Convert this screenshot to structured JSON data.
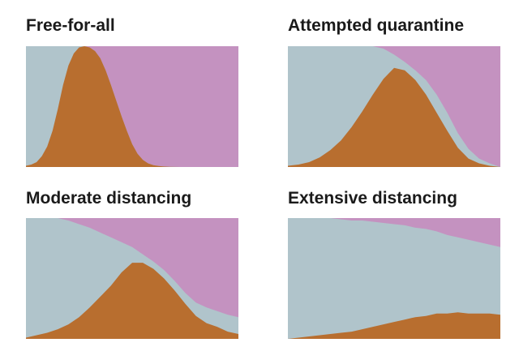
{
  "colors": {
    "healthy": "#b0c4cb",
    "sick": "#b86e2f",
    "recovered": "#c492c0"
  },
  "chart_data": [
    {
      "type": "area",
      "title": "Free-for-all",
      "x": [
        0,
        0.025,
        0.05,
        0.075,
        0.1,
        0.125,
        0.15,
        0.175,
        0.2,
        0.225,
        0.25,
        0.275,
        0.3,
        0.325,
        0.35,
        0.375,
        0.4,
        0.425,
        0.45,
        0.475,
        0.5,
        0.525,
        0.55,
        0.575,
        0.6,
        0.625,
        0.65,
        0.675,
        0.7,
        0.725,
        0.75,
        1
      ],
      "series": [
        {
          "key": "sick",
          "values": [
            0.01,
            0.02,
            0.04,
            0.09,
            0.17,
            0.3,
            0.48,
            0.68,
            0.84,
            0.94,
            0.99,
            1.0,
            0.99,
            0.96,
            0.9,
            0.8,
            0.68,
            0.55,
            0.42,
            0.3,
            0.19,
            0.11,
            0.06,
            0.03,
            0.015,
            0.008,
            0.004,
            0.002,
            0.001,
            0,
            0,
            0
          ]
        },
        {
          "key": "recovered",
          "values": [
            0,
            0,
            0,
            0,
            0,
            0,
            0,
            0,
            0,
            0,
            0,
            0,
            0.01,
            0.04,
            0.1,
            0.2,
            0.32,
            0.45,
            0.58,
            0.7,
            0.81,
            0.89,
            0.94,
            0.97,
            0.985,
            0.992,
            0.996,
            0.998,
            0.999,
            1,
            1,
            1
          ]
        }
      ]
    },
    {
      "type": "area",
      "title": "Attempted quarantine",
      "x": [
        0,
        0.05,
        0.1,
        0.15,
        0.2,
        0.25,
        0.3,
        0.35,
        0.4,
        0.45,
        0.5,
        0.55,
        0.6,
        0.65,
        0.7,
        0.75,
        0.8,
        0.85,
        0.9,
        0.95,
        1
      ],
      "series": [
        {
          "key": "sick",
          "values": [
            0.01,
            0.02,
            0.04,
            0.08,
            0.14,
            0.22,
            0.33,
            0.46,
            0.6,
            0.73,
            0.82,
            0.8,
            0.72,
            0.6,
            0.45,
            0.3,
            0.16,
            0.07,
            0.03,
            0.01,
            0
          ]
        },
        {
          "key": "recovered",
          "values": [
            0,
            0,
            0,
            0,
            0,
            0,
            0,
            0,
            0,
            0.02,
            0.07,
            0.13,
            0.2,
            0.28,
            0.4,
            0.55,
            0.72,
            0.85,
            0.93,
            0.97,
            1
          ]
        }
      ]
    },
    {
      "type": "area",
      "title": "Moderate distancing",
      "x": [
        0,
        0.05,
        0.1,
        0.15,
        0.2,
        0.25,
        0.3,
        0.35,
        0.4,
        0.45,
        0.5,
        0.55,
        0.6,
        0.65,
        0.7,
        0.75,
        0.8,
        0.85,
        0.9,
        0.95,
        1
      ],
      "series": [
        {
          "key": "sick",
          "values": [
            0.01,
            0.03,
            0.05,
            0.08,
            0.12,
            0.18,
            0.26,
            0.35,
            0.44,
            0.55,
            0.63,
            0.63,
            0.58,
            0.5,
            0.4,
            0.29,
            0.19,
            0.13,
            0.1,
            0.06,
            0.04
          ]
        },
        {
          "key": "recovered",
          "values": [
            0,
            0,
            0,
            0,
            0.02,
            0.05,
            0.08,
            0.12,
            0.16,
            0.2,
            0.24,
            0.3,
            0.36,
            0.43,
            0.52,
            0.62,
            0.7,
            0.74,
            0.77,
            0.8,
            0.82
          ]
        }
      ]
    },
    {
      "type": "area",
      "title": "Extensive distancing",
      "x": [
        0,
        0.05,
        0.1,
        0.15,
        0.2,
        0.25,
        0.3,
        0.35,
        0.4,
        0.45,
        0.5,
        0.55,
        0.6,
        0.65,
        0.7,
        0.75,
        0.8,
        0.85,
        0.9,
        0.95,
        1
      ],
      "series": [
        {
          "key": "sick",
          "values": [
            0.0,
            0.01,
            0.02,
            0.03,
            0.04,
            0.05,
            0.06,
            0.08,
            0.1,
            0.12,
            0.14,
            0.16,
            0.18,
            0.19,
            0.21,
            0.21,
            0.22,
            0.21,
            0.21,
            0.21,
            0.2
          ]
        },
        {
          "key": "recovered",
          "values": [
            0,
            0,
            0,
            0,
            0,
            0.01,
            0.02,
            0.02,
            0.03,
            0.04,
            0.05,
            0.06,
            0.08,
            0.09,
            0.11,
            0.14,
            0.16,
            0.18,
            0.2,
            0.22,
            0.24
          ]
        }
      ]
    }
  ]
}
